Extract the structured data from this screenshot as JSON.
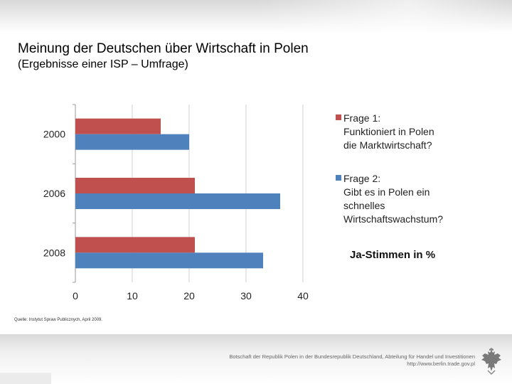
{
  "header": {
    "title": "Meinung der Deutschen über Wirtschaft in Polen",
    "subtitle": "(Ergebnisse einer ISP – Umfrage)"
  },
  "legend": {
    "q1": "Frage 1: Funktioniert in Polen die Marktwirtschaft?",
    "q1_lines": [
      "Frage 1:",
      "Funktioniert in Polen",
      "die Marktwirtschaft?"
    ],
    "q2": "Frage 2: Gibt es in Polen ein schnelles Wirtschaftswachstum?",
    "q2_lines": [
      "Frage 2:",
      "Gibt es in Polen ein",
      "schnelles",
      "Wirtschaftswachstum?"
    ]
  },
  "unit_note": "Ja-Stimmen in %",
  "source": "Quelle: Instytut Spraw Publicznych, April 2009.",
  "footer": {
    "line1": "Botschaft der Republik Polen in der Bundesrepublik Deutschland, Abteilung für Handel und Investitionen",
    "line2": "http://www.berlin.trade.gov.pl"
  },
  "colors": {
    "q1": "#c0504d",
    "q2": "#4f81bd"
  },
  "chart_data": {
    "type": "bar",
    "orientation": "horizontal",
    "title": "Meinung der Deutschen über Wirtschaft in Polen",
    "subtitle": "(Ergebnisse einer ISP – Umfrage)",
    "categories": [
      "2000",
      "2006",
      "2008"
    ],
    "series": [
      {
        "name": "Frage 1: Funktioniert in Polen die Marktwirtschaft?",
        "values": [
          15,
          21,
          21
        ]
      },
      {
        "name": "Frage 2: Gibt es in Polen ein schnelles Wirtschaftswachstum?",
        "values": [
          20,
          36,
          33
        ]
      }
    ],
    "xlim": [
      0,
      40
    ],
    "xticks": [
      0,
      10,
      20,
      30,
      40
    ],
    "xlabel": "Ja-Stimmen in %",
    "ylabel": "",
    "grid": true,
    "legend": "right"
  }
}
